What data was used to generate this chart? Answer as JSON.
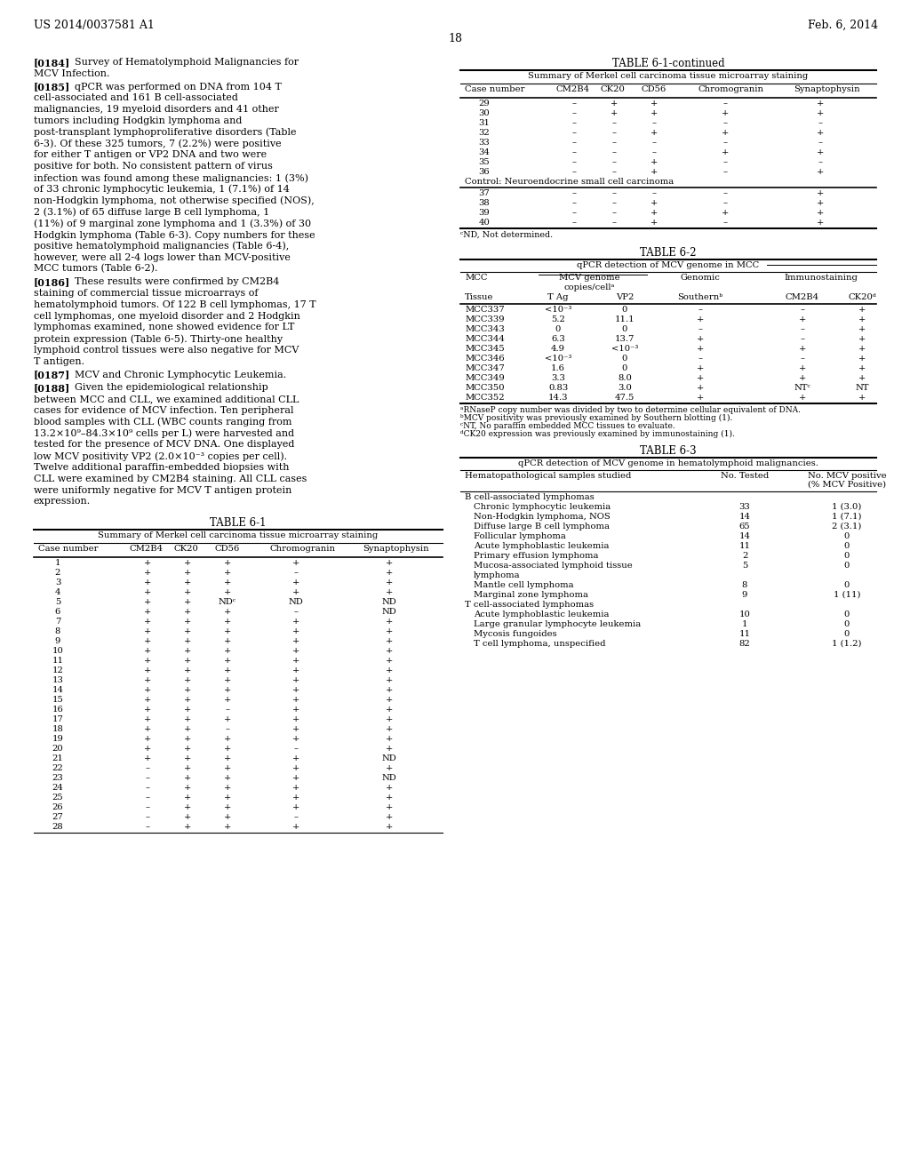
{
  "header_left": "US 2014/0037581 A1",
  "header_right": "Feb. 6, 2014",
  "page_number": "18",
  "background": "#ffffff",
  "table61_title": "TABLE 6-1",
  "table61_subtitle": "Summary of Merkel cell carcinoma tissue microarray staining",
  "table61_cols": [
    "Case number",
    "CM2B4",
    "CK20",
    "CD56",
    "Chromogranin",
    "Synaptophysin"
  ],
  "table61_rows": [
    [
      "1",
      "+",
      "+",
      "+",
      "+",
      "+"
    ],
    [
      "2",
      "+",
      "+",
      "+",
      "–",
      "+"
    ],
    [
      "3",
      "+",
      "+",
      "+",
      "+",
      "+"
    ],
    [
      "4",
      "+",
      "+",
      "+",
      "+",
      "+"
    ],
    [
      "5",
      "+",
      "+",
      "NDᶜ",
      "ND",
      "ND"
    ],
    [
      "6",
      "+",
      "+",
      "+",
      "–",
      "ND"
    ],
    [
      "7",
      "+",
      "+",
      "+",
      "+",
      "+"
    ],
    [
      "8",
      "+",
      "+",
      "+",
      "+",
      "+"
    ],
    [
      "9",
      "+",
      "+",
      "+",
      "+",
      "+"
    ],
    [
      "10",
      "+",
      "+",
      "+",
      "+",
      "+"
    ],
    [
      "11",
      "+",
      "+",
      "+",
      "+",
      "+"
    ],
    [
      "12",
      "+",
      "+",
      "+",
      "+",
      "+"
    ],
    [
      "13",
      "+",
      "+",
      "+",
      "+",
      "+"
    ],
    [
      "14",
      "+",
      "+",
      "+",
      "+",
      "+"
    ],
    [
      "15",
      "+",
      "+",
      "+",
      "+",
      "+"
    ],
    [
      "16",
      "+",
      "+",
      "–",
      "+",
      "+"
    ],
    [
      "17",
      "+",
      "+",
      "+",
      "+",
      "+"
    ],
    [
      "18",
      "+",
      "+",
      "–",
      "+",
      "+"
    ],
    [
      "19",
      "+",
      "+",
      "+",
      "+",
      "+"
    ],
    [
      "20",
      "+",
      "+",
      "+",
      "–",
      "+"
    ],
    [
      "21",
      "+",
      "+",
      "+",
      "+",
      "ND"
    ],
    [
      "22",
      "–",
      "+",
      "+",
      "+",
      "+"
    ],
    [
      "23",
      "–",
      "+",
      "+",
      "+",
      "ND"
    ],
    [
      "24",
      "–",
      "+",
      "+",
      "+",
      "+"
    ],
    [
      "25",
      "–",
      "+",
      "+",
      "+",
      "+"
    ],
    [
      "26",
      "–",
      "+",
      "+",
      "+",
      "+"
    ],
    [
      "27",
      "–",
      "+",
      "+",
      "–",
      "+"
    ],
    [
      "28",
      "–",
      "+",
      "+",
      "+",
      "+"
    ]
  ],
  "table61cont_title": "TABLE 6-1-continued",
  "table61cont_subtitle": "Summary of Merkel cell carcinoma tissue microarray staining",
  "table61cont_cols": [
    "Case number",
    "CM2B4",
    "CK20",
    "CD56",
    "Chromogranin",
    "Synaptophysin"
  ],
  "table61cont_rows": [
    [
      "29",
      "–",
      "+",
      "+",
      "–",
      "+"
    ],
    [
      "30",
      "–",
      "+",
      "+",
      "+",
      "+"
    ],
    [
      "31",
      "–",
      "–",
      "–",
      "–",
      "–"
    ],
    [
      "32",
      "–",
      "–",
      "+",
      "+",
      "+"
    ],
    [
      "33",
      "–",
      "–",
      "–",
      "–",
      "–"
    ],
    [
      "34",
      "–",
      "–",
      "–",
      "+",
      "+"
    ],
    [
      "35",
      "–",
      "–",
      "+",
      "–",
      "–"
    ],
    [
      "36",
      "–",
      "–",
      "+",
      "–",
      "+"
    ]
  ],
  "table61cont_control_label": "Control: Neuroendocrine small cell carcinoma",
  "table61cont_control_rows": [
    [
      "37",
      "–",
      "–",
      "–",
      "–",
      "+"
    ],
    [
      "38",
      "–",
      "–",
      "+",
      "–",
      "+"
    ],
    [
      "39",
      "–",
      "–",
      "+",
      "+",
      "+"
    ],
    [
      "40",
      "–",
      "–",
      "+",
      "–",
      "+"
    ]
  ],
  "table61_footnote": "ᶜND, Not determined.",
  "table62_title": "TABLE 6-2",
  "table62_subtitle": "qPCR detection of MCV genome in MCC",
  "table62_rows": [
    [
      "MCC337",
      "<10⁻³",
      "0",
      "–",
      "–",
      "+"
    ],
    [
      "MCC339",
      "5.2",
      "11.1",
      "+",
      "+",
      "+"
    ],
    [
      "MCC343",
      "0",
      "0",
      "–",
      "–",
      "+"
    ],
    [
      "MCC344",
      "6.3",
      "13.7",
      "+",
      "–",
      "+"
    ],
    [
      "MCC345",
      "4.9",
      "<10⁻³",
      "+",
      "+",
      "+"
    ],
    [
      "MCC346",
      "<10⁻³",
      "0",
      "–",
      "–",
      "+"
    ],
    [
      "MCC347",
      "1.6",
      "0",
      "+",
      "+",
      "+"
    ],
    [
      "MCC349",
      "3.3",
      "8.0",
      "+",
      "+",
      "+"
    ],
    [
      "MCC350",
      "0.83",
      "3.0",
      "+",
      "NTᶜ",
      "NT"
    ],
    [
      "MCC352",
      "14.3",
      "47.5",
      "+",
      "+",
      "+"
    ]
  ],
  "table62_footnotes": [
    "ᵃRNaseP copy number was divided by two to determine cellular equivalent of DNA.",
    "ᵇMCV positivity was previously examined by Southern blotting (1).",
    "ᶜNT, No paraffin embedded MCC tissues to evaluate.",
    "ᵈCK20 expression was previously examined by immunostaining (1)."
  ],
  "table63_title": "TABLE 6-3",
  "table63_subtitle": "qPCR detection of MCV genome in hematolymphoid malignancies.",
  "table63_b_header": "B cell-associated lymphomas",
  "table63_b_rows": [
    [
      "Chronic lymphocytic leukemia",
      "33",
      "1 (3.0)"
    ],
    [
      "Non-Hodgkin lymphoma, NOS",
      "14",
      "1 (7.1)"
    ],
    [
      "Diffuse large B cell lymphoma",
      "65",
      "2 (3.1)"
    ],
    [
      "Follicular lymphoma",
      "14",
      "0"
    ],
    [
      "Acute lymphoblastic leukemia",
      "11",
      "0"
    ],
    [
      "Primary effusion lymphoma",
      "2",
      "0"
    ],
    [
      "Mucosa-associated lymphoid tissue",
      "5",
      "0"
    ],
    [
      "lymphoma",
      "",
      ""
    ],
    [
      "Mantle cell lymphoma",
      "8",
      "0"
    ],
    [
      "Marginal zone lymphoma",
      "9",
      "1 (11)"
    ]
  ],
  "table63_t_header": "T cell-associated lymphomas",
  "table63_t_rows": [
    [
      "Acute lymphoblastic leukemia",
      "10",
      "0"
    ],
    [
      "Large granular lymphocyte leukemia",
      "1",
      "0"
    ],
    [
      "Mycosis fungoides",
      "11",
      "0"
    ],
    [
      "T cell lymphoma, unspecified",
      "82",
      "1 (1.2)"
    ]
  ],
  "left_paragraphs": [
    {
      "tag": "[0184]",
      "text": "Survey of Hematolymphoid Malignancies for MCV Infection."
    },
    {
      "tag": "[0185]",
      "text": "qPCR was performed on DNA from 104 T cell-associated and 161 B cell-associated malignancies, 19 myeloid disorders and 41 other tumors including Hodgkin lymphoma and post-transplant lymphoproliferative disorders (Table 6-3). Of these 325 tumors, 7 (2.2%) were positive for either T antigen or VP2 DNA and two were positive for both. No consistent pattern of virus infection was found among these malignancies: 1 (3%) of 33 chronic lymphocytic leukemia, 1 (7.1%) of 14 non-Hodgkin lymphoma, not otherwise specified (NOS), 2 (3.1%) of 65 diffuse large B cell lymphoma, 1 (11%) of 9 marginal zone lymphoma and 1 (3.3%) of 30 Hodgkin lymphoma (Table 6-3). Copy numbers for these positive hematolymphoid malignancies (Table 6-4), however, were all 2-4 logs lower than MCV-positive MCC tumors (Table 6-2)."
    },
    {
      "tag": "[0186]",
      "text": "These results were confirmed by CM2B4 staining of commercial tissue microarrays of hematolymphoid tumors. Of 122 B cell lymphomas, 17 T cell lymphomas, one myeloid disorder and 2 Hodgkin lymphomas examined, none showed evidence for LT protein expression (Table 6-5). Thirty-one healthy lymphoid control tissues were also negative for MCV T antigen."
    },
    {
      "tag": "[0187]",
      "text": "MCV and Chronic Lymphocytic Leukemia."
    },
    {
      "tag": "[0188]",
      "text": "Given the epidemiological relationship between MCC and CLL, we examined additional CLL cases for evidence of MCV infection. Ten peripheral blood samples with CLL (WBC counts ranging from 13.2×10⁹–84.3×10⁹ cells per L) were harvested and tested for the presence of MCV DNA. One displayed low MCV positivity VP2 (2.0×10⁻³ copies per cell). Twelve additional paraffin-embedded biopsies with CLL were examined by CM2B4 staining. All CLL cases were uniformly negative for MCV T antigen protein expression."
    }
  ]
}
